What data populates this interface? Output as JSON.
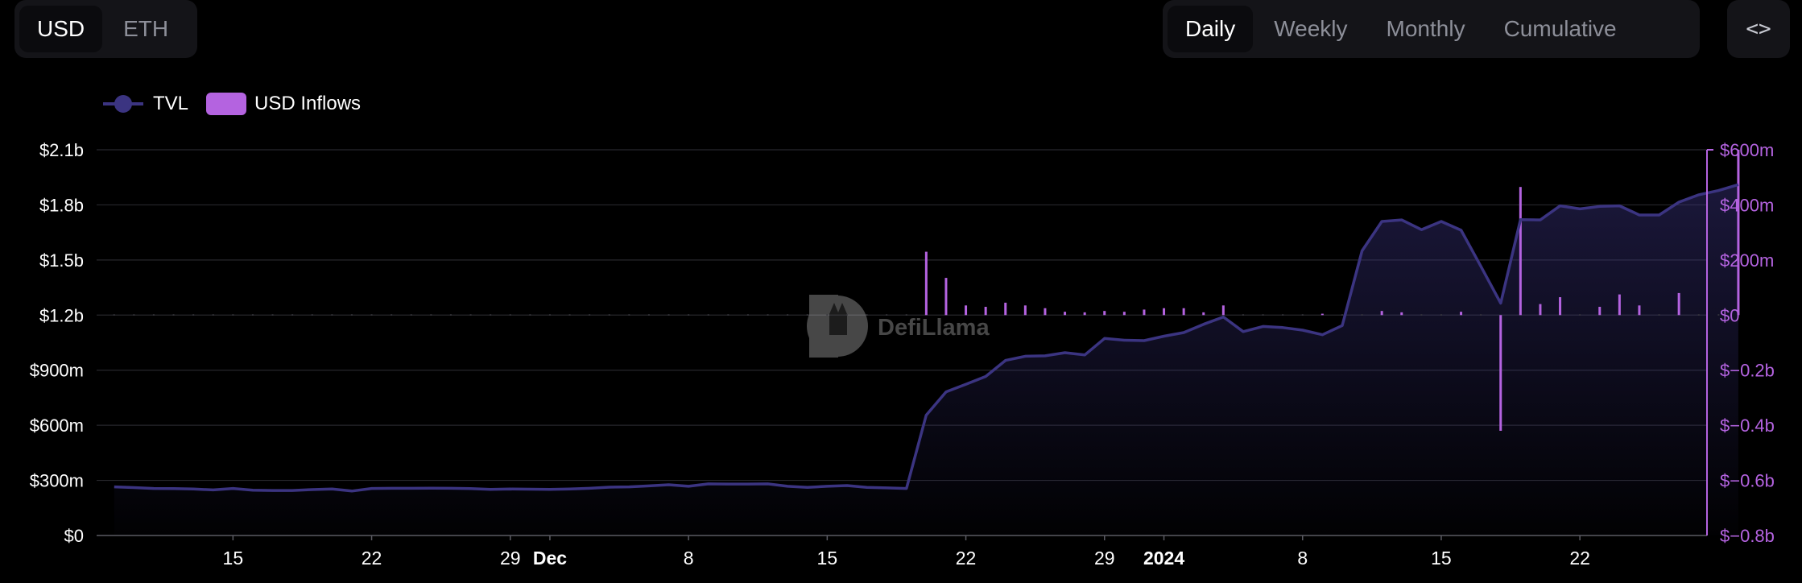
{
  "controls": {
    "currency": [
      {
        "label": "USD",
        "active": true
      },
      {
        "label": "ETH",
        "active": false
      }
    ],
    "periods": [
      {
        "label": "Daily",
        "active": true
      },
      {
        "label": "Weekly",
        "active": false
      },
      {
        "label": "Monthly",
        "active": false
      },
      {
        "label": "Cumulative",
        "active": false
      }
    ],
    "embed_icon": "code-brackets-icon",
    "embed_label": "<>"
  },
  "legend": {
    "tvl_label": "TVL",
    "inflows_label": "USD Inflows"
  },
  "watermark": "DefiLlama",
  "colors": {
    "background": "#000000",
    "tvl": "#3b3481",
    "inflows": "#b463e0",
    "grid": "#27272c",
    "axis_text": "#ffffff",
    "right_axis_text": "#b463e0"
  },
  "chart_data": {
    "type": "line",
    "title": "",
    "x_ticks": [
      "15",
      "22",
      "29",
      "Dec",
      "8",
      "15",
      "22",
      "29",
      "2024",
      "8",
      "15",
      "22"
    ],
    "y_left": {
      "ticks": [
        "$0",
        "$300m",
        "$600m",
        "$900m",
        "$1.2b",
        "$1.5b",
        "$1.8b",
        "$2.1b"
      ],
      "ylim": [
        0,
        2100000000
      ]
    },
    "y_right": {
      "ticks": [
        "$−0.8b",
        "$−0.6b",
        "$−0.4b",
        "$−0.2b",
        "$0",
        "$200m",
        "$400m",
        "$600m"
      ],
      "ylim": [
        -800000000,
        600000000
      ]
    },
    "grid": true,
    "legend_position": "top-left",
    "series": [
      {
        "name": "TVL",
        "kind": "area",
        "x_start": "2023-11-09",
        "values_millions": [
          265,
          261,
          256,
          255,
          253,
          248,
          256,
          247,
          245,
          245,
          250,
          253,
          242,
          256,
          257,
          257,
          258,
          257,
          255,
          251,
          253,
          252,
          251,
          253,
          257,
          263,
          265,
          270,
          276,
          268,
          281,
          280,
          280,
          281,
          268,
          262,
          268,
          272,
          262,
          259,
          256,
          655,
          782,
          823,
          866,
          953,
          976,
          978,
          995,
          983,
          1073,
          1063,
          1061,
          1085,
          1105,
          1150,
          1190,
          1110,
          1138,
          1132,
          1118,
          1093,
          1143,
          1550,
          1710,
          1718,
          1665,
          1710,
          1662,
          1465,
          1265,
          1720,
          1718,
          1795,
          1778,
          1792,
          1795,
          1745,
          1745,
          1815,
          1855,
          1878,
          1910
        ]
      },
      {
        "name": "USD Inflows",
        "kind": "bar",
        "x_start": "2023-11-09",
        "values_millions": [
          0,
          0,
          0,
          0,
          0,
          0,
          0,
          0,
          0,
          0,
          0,
          0,
          0,
          0,
          0,
          0,
          0,
          0,
          0,
          0,
          0,
          0,
          0,
          0,
          0,
          0,
          0,
          0,
          0,
          0,
          0,
          0,
          0,
          0,
          0,
          0,
          0,
          0,
          0,
          0,
          0,
          230,
          135,
          35,
          30,
          45,
          35,
          25,
          12,
          10,
          15,
          12,
          20,
          25,
          25,
          10,
          35,
          0,
          0,
          0,
          0,
          5,
          0,
          0,
          15,
          10,
          0,
          0,
          12,
          0,
          -420,
          465,
          40,
          65,
          0,
          30,
          75,
          35,
          0,
          80,
          0,
          0,
          600
        ]
      }
    ]
  }
}
